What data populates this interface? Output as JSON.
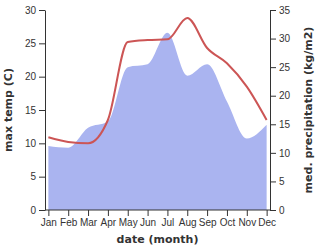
{
  "chart_data": {
    "type": "line",
    "x_label": "date (month)",
    "y_label": "max temp (C)",
    "y2_label": "med. precipitation (kg/m2)",
    "categories": [
      "Jan",
      "Feb",
      "Mar",
      "Apr",
      "May",
      "Jun",
      "Jul",
      "Aug",
      "Sep",
      "Oct",
      "Nov",
      "Dec"
    ],
    "series": [
      {
        "type": "area",
        "axis": "y2",
        "color": "#aab4f0",
        "values": [
          11.2,
          10.9,
          14.4,
          15.5,
          25.0,
          25.5,
          31.0,
          23.5,
          25.5,
          19.0,
          12.5,
          14.9
        ]
      },
      {
        "type": "line",
        "color": "#cc5555",
        "values": [
          10.9,
          10.2,
          10.0,
          13.5,
          25.2,
          25.5,
          25.6,
          28.8,
          24.3,
          22.0,
          18.5,
          13.5
        ]
      }
    ],
    "ylim": [
      0,
      30
    ],
    "yticks": [
      0,
      5,
      10,
      15,
      20,
      25,
      30
    ],
    "y2lim": [
      0,
      35
    ],
    "y2ticks": [
      0,
      5,
      10,
      15,
      20,
      25,
      30,
      35
    ],
    "grid": false
  }
}
